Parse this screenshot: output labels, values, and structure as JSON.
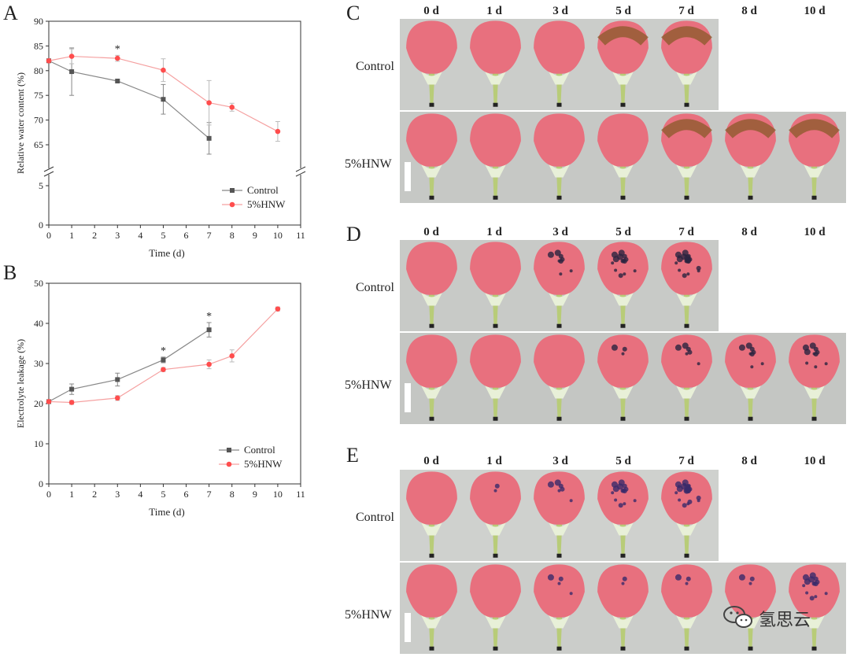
{
  "panels": {
    "A": "A",
    "B": "B",
    "C": "C",
    "D": "D",
    "E": "E"
  },
  "photo_rows": {
    "control": "Control",
    "treated": "5%HNW"
  },
  "days": [
    "0 d",
    "1 d",
    "3 d",
    "5 d",
    "7 d",
    "8 d",
    "10 d"
  ],
  "sig_mark": "*",
  "colors": {
    "control": "#555555",
    "treated": "#ff4d4d",
    "treated_line": "#f5a0a0",
    "petal": "#e8707e",
    "stem": "#b8cc78",
    "photo_bg": "#c9cbc8"
  },
  "watermark": {
    "icon": "wechat-icon",
    "text": "氢思云"
  },
  "chart_data": [
    {
      "type": "line",
      "ylabel": "Relative water content (%)",
      "xlabel": "Time (d)",
      "x_ticks": [
        "0",
        "1",
        "2",
        "3",
        "4",
        "5",
        "6",
        "7",
        "8",
        "9",
        "10",
        "11"
      ],
      "y_ticks_upper": [
        "65",
        "70",
        "75",
        "80",
        "85",
        "90"
      ],
      "y_ticks_lower": [
        "0",
        "5"
      ],
      "ylim_upper": [
        62,
        90
      ],
      "ylim_lower": [
        0,
        8
      ],
      "axis_break": true,
      "legend": "bottom-right",
      "significance_x": [
        3
      ],
      "series": [
        {
          "name": "Control",
          "x": [
            0,
            1,
            3,
            5,
            7
          ],
          "y": [
            82,
            79.8,
            77.9,
            74.2,
            66.3
          ],
          "err": [
            0,
            4.8,
            0,
            3,
            3.2
          ]
        },
        {
          "name": "5%HNW",
          "x": [
            0,
            1,
            3,
            5,
            7,
            8,
            10
          ],
          "y": [
            82,
            82.9,
            82.5,
            80.1,
            73.5,
            72.6,
            67.7
          ],
          "err": [
            0,
            1.5,
            0.6,
            2.3,
            4.5,
            0.8,
            2
          ]
        }
      ]
    },
    {
      "type": "line",
      "ylabel": "Electrolyte leakage (%)",
      "xlabel": "Time (d)",
      "x_ticks": [
        "0",
        "1",
        "2",
        "3",
        "4",
        "5",
        "6",
        "7",
        "8",
        "9",
        "10",
        "11"
      ],
      "y_ticks": [
        "0",
        "10",
        "20",
        "30",
        "40",
        "50"
      ],
      "ylim": [
        0,
        50
      ],
      "legend": "bottom-right",
      "significance_x": [
        5,
        7
      ],
      "series": [
        {
          "name": "Control",
          "x": [
            0,
            1,
            3,
            5,
            7
          ],
          "y": [
            20.5,
            23.6,
            26,
            30.9,
            38.4
          ],
          "err": [
            0,
            1.3,
            1.6,
            0.7,
            1.8
          ]
        },
        {
          "name": "5%HNW",
          "x": [
            0,
            1,
            3,
            5,
            7,
            8,
            10
          ],
          "y": [
            20.5,
            20.3,
            21.4,
            28.5,
            29.8,
            31.9,
            43.6
          ],
          "err": [
            0,
            0.5,
            0.6,
            0.5,
            1.1,
            1.5,
            0.5
          ]
        }
      ]
    }
  ]
}
